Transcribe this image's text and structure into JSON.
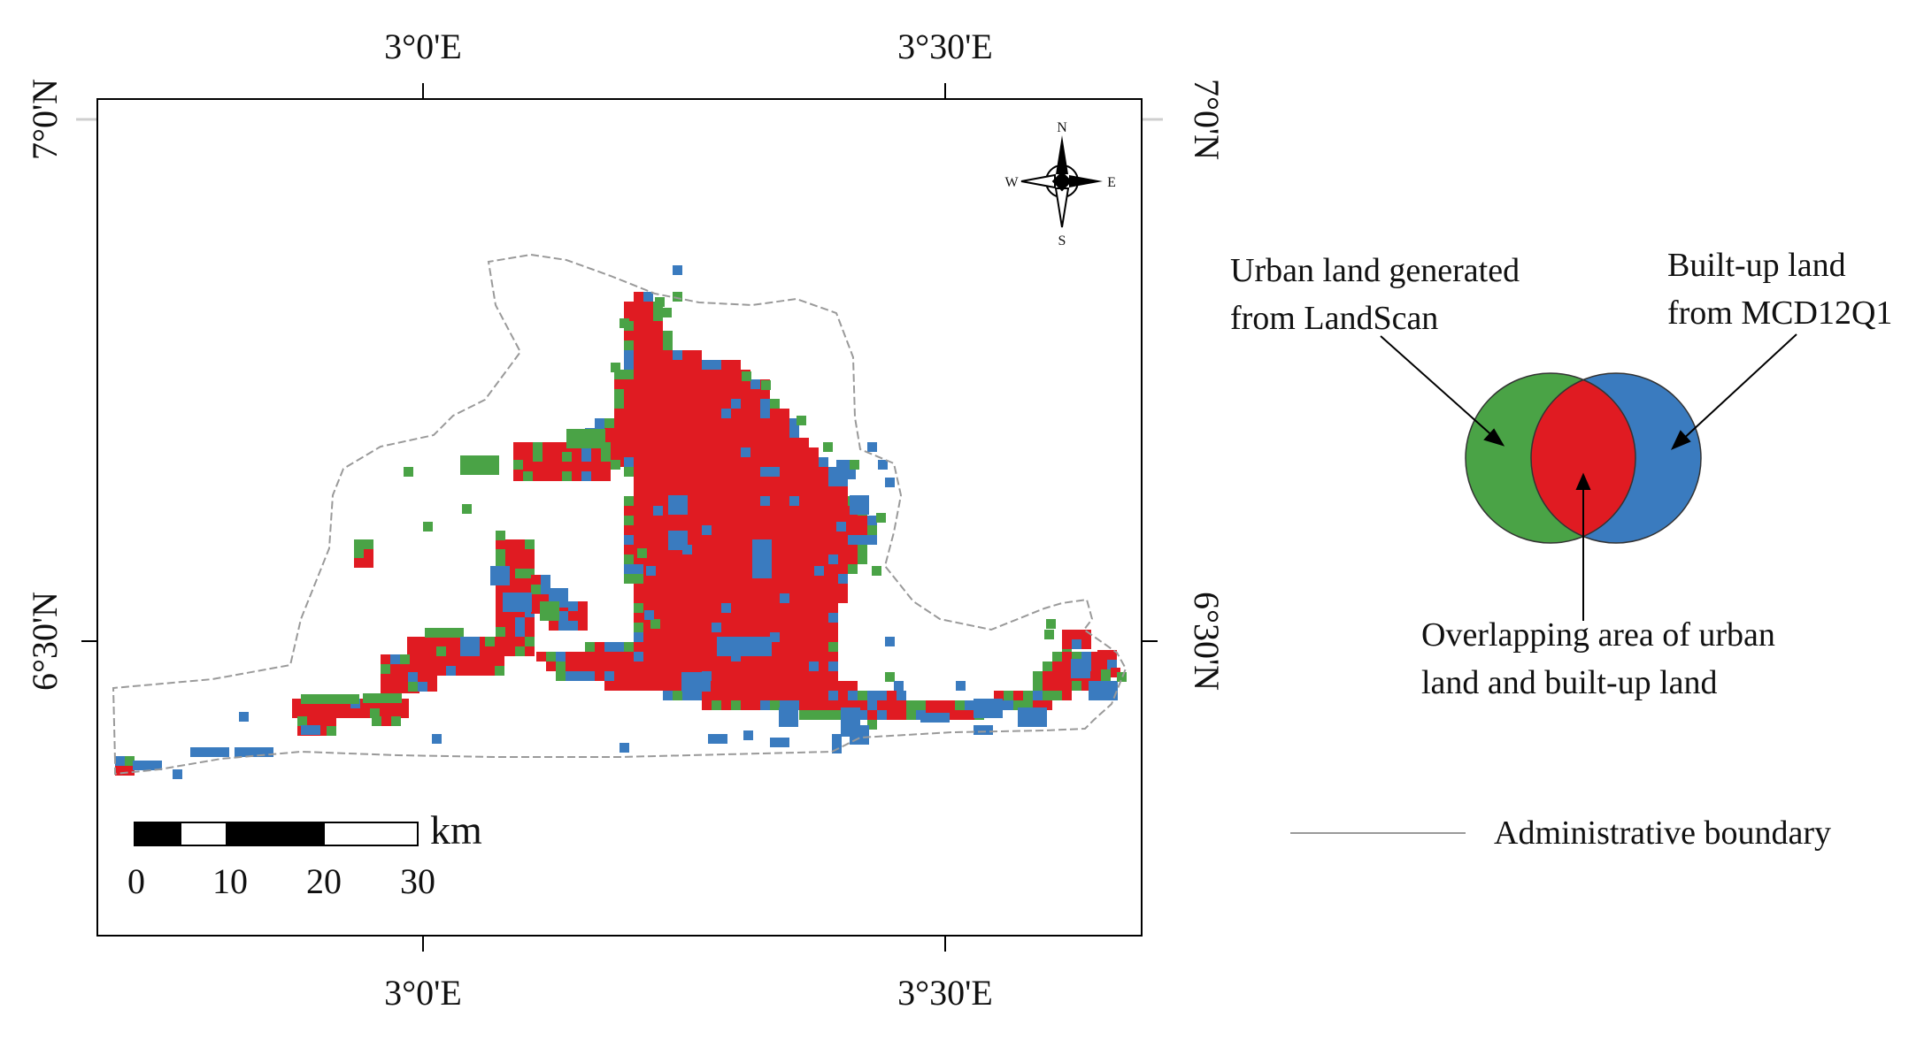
{
  "map": {
    "graticule": {
      "top_labels": [
        "3°0'E",
        "3°30'E"
      ],
      "bottom_labels": [
        "3°0'E",
        "3°30'E"
      ],
      "left_labels": [
        "7°0'N",
        "6°30'N"
      ],
      "right_labels": [
        "7°0'N",
        "6°30'N"
      ]
    },
    "north_arrow": {
      "n": "N",
      "s": "S",
      "e": "E",
      "w": "W"
    },
    "scale_bar": {
      "unit": "km",
      "ticks": [
        "0",
        "10",
        "20",
        "30"
      ]
    }
  },
  "legend": {
    "landscan_label": "Urban land generated from LandScan",
    "mcd12q1_label": "Built-up land from MCD12Q1",
    "overlap_label": "Overlapping area of urban land and built-up land",
    "boundary_label": "Administrative boundary"
  },
  "colors": {
    "landscan_only": "#4aa346",
    "mcd12q1_only": "#3a7bbf",
    "overlap": "#e01b22",
    "boundary": "#9a9a9a",
    "frame": "#000000"
  }
}
